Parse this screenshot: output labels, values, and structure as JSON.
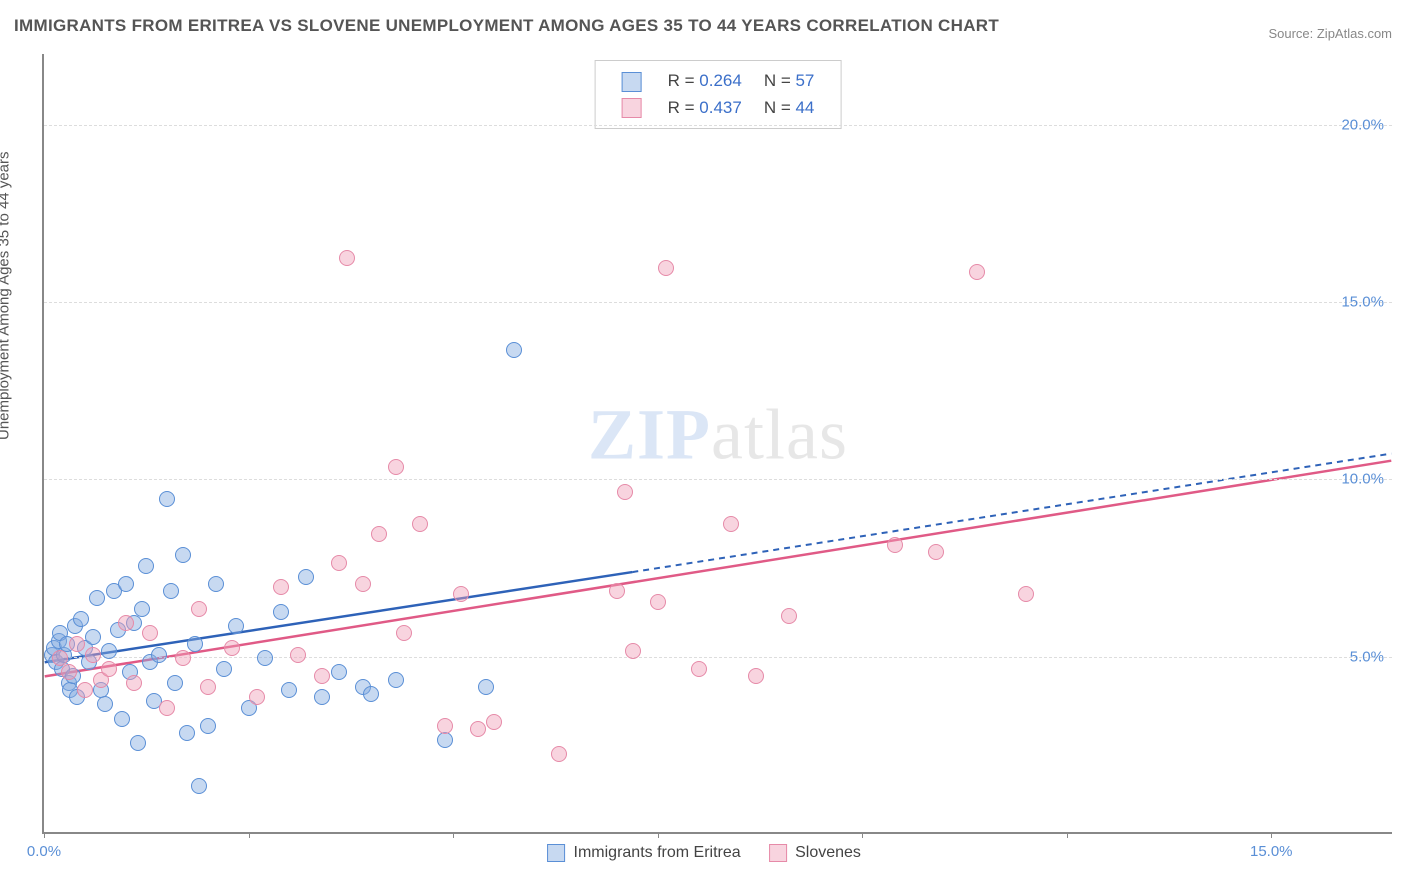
{
  "chart": {
    "type": "scatter",
    "title": "IMMIGRANTS FROM ERITREA VS SLOVENE UNEMPLOYMENT AMONG AGES 35 TO 44 YEARS CORRELATION CHART",
    "source": "Source: ZipAtlas.com",
    "ylabel": "Unemployment Among Ages 35 to 44 years",
    "watermark_zip": "ZIP",
    "watermark_atlas": "atlas",
    "background_color": "#ffffff",
    "grid_color": "#dddddd",
    "axis_color": "#888888",
    "tick_label_color": "#5a8fd6",
    "text_color": "#555555",
    "xlim": [
      0,
      16.5
    ],
    "ylim": [
      0,
      22
    ],
    "yticks": [
      5.0,
      10.0,
      15.0,
      20.0
    ],
    "ytick_labels": [
      "5.0%",
      "10.0%",
      "15.0%",
      "20.0%"
    ],
    "xticks": [
      0,
      2.5,
      5.0,
      7.5,
      10.0,
      12.5,
      15.0
    ],
    "xtick_labels_shown": {
      "0": "0.0%",
      "15": "15.0%"
    },
    "marker_radius": 8,
    "series": [
      {
        "id": "eritrea",
        "label": "Immigrants from Eritrea",
        "fill": "rgba(130,170,225,0.45)",
        "stroke": "#5a8fd6",
        "line_color": "#2e62b8",
        "r": 0.264,
        "n": 57,
        "trend": {
          "x1": 0,
          "y1": 4.8,
          "x2_solid": 7.2,
          "y2_solid": 7.35,
          "x2_dash": 16.5,
          "y2_dash": 10.7
        },
        "points": [
          [
            0.1,
            5.0
          ],
          [
            0.12,
            5.2
          ],
          [
            0.15,
            4.8
          ],
          [
            0.18,
            5.4
          ],
          [
            0.2,
            5.6
          ],
          [
            0.22,
            4.6
          ],
          [
            0.25,
            5.0
          ],
          [
            0.28,
            5.3
          ],
          [
            0.3,
            4.2
          ],
          [
            0.32,
            4.0
          ],
          [
            0.35,
            4.4
          ],
          [
            0.38,
            5.8
          ],
          [
            0.4,
            3.8
          ],
          [
            0.45,
            6.0
          ],
          [
            0.5,
            5.2
          ],
          [
            0.55,
            4.8
          ],
          [
            0.6,
            5.5
          ],
          [
            0.65,
            6.6
          ],
          [
            0.7,
            4.0
          ],
          [
            0.75,
            3.6
          ],
          [
            0.8,
            5.1
          ],
          [
            0.85,
            6.8
          ],
          [
            0.9,
            5.7
          ],
          [
            0.95,
            3.2
          ],
          [
            1.0,
            7.0
          ],
          [
            1.05,
            4.5
          ],
          [
            1.1,
            5.9
          ],
          [
            1.15,
            2.5
          ],
          [
            1.2,
            6.3
          ],
          [
            1.25,
            7.5
          ],
          [
            1.3,
            4.8
          ],
          [
            1.35,
            3.7
          ],
          [
            1.4,
            5.0
          ],
          [
            1.5,
            9.4
          ],
          [
            1.55,
            6.8
          ],
          [
            1.6,
            4.2
          ],
          [
            1.7,
            7.8
          ],
          [
            1.75,
            2.8
          ],
          [
            1.85,
            5.3
          ],
          [
            1.9,
            1.3
          ],
          [
            2.0,
            3.0
          ],
          [
            2.1,
            7.0
          ],
          [
            2.2,
            4.6
          ],
          [
            2.35,
            5.8
          ],
          [
            2.5,
            3.5
          ],
          [
            2.7,
            4.9
          ],
          [
            2.9,
            6.2
          ],
          [
            3.0,
            4.0
          ],
          [
            3.2,
            7.2
          ],
          [
            3.4,
            3.8
          ],
          [
            3.6,
            4.5
          ],
          [
            3.9,
            4.1
          ],
          [
            4.0,
            3.9
          ],
          [
            4.3,
            4.3
          ],
          [
            4.9,
            2.6
          ],
          [
            5.4,
            4.1
          ],
          [
            5.75,
            13.6
          ]
        ]
      },
      {
        "id": "slovenes",
        "label": "Slovenes",
        "fill": "rgba(240,160,185,0.45)",
        "stroke": "#e68aa8",
        "line_color": "#e05a86",
        "r": 0.437,
        "n": 44,
        "trend": {
          "x1": 0,
          "y1": 4.4,
          "x2_solid": 16.5,
          "y2_solid": 10.5
        },
        "points": [
          [
            0.2,
            4.9
          ],
          [
            0.3,
            4.5
          ],
          [
            0.4,
            5.3
          ],
          [
            0.5,
            4.0
          ],
          [
            0.6,
            5.0
          ],
          [
            0.7,
            4.3
          ],
          [
            0.8,
            4.6
          ],
          [
            1.0,
            5.9
          ],
          [
            1.1,
            4.2
          ],
          [
            1.3,
            5.6
          ],
          [
            1.5,
            3.5
          ],
          [
            1.7,
            4.9
          ],
          [
            1.9,
            6.3
          ],
          [
            2.0,
            4.1
          ],
          [
            2.3,
            5.2
          ],
          [
            2.6,
            3.8
          ],
          [
            2.9,
            6.9
          ],
          [
            3.1,
            5.0
          ],
          [
            3.4,
            4.4
          ],
          [
            3.6,
            7.6
          ],
          [
            3.7,
            16.2
          ],
          [
            3.9,
            7.0
          ],
          [
            4.1,
            8.4
          ],
          [
            4.3,
            10.3
          ],
          [
            4.4,
            5.6
          ],
          [
            4.6,
            8.7
          ],
          [
            4.9,
            3.0
          ],
          [
            5.1,
            6.7
          ],
          [
            5.3,
            2.9
          ],
          [
            5.5,
            3.1
          ],
          [
            6.3,
            2.2
          ],
          [
            7.0,
            6.8
          ],
          [
            7.1,
            9.6
          ],
          [
            7.2,
            5.1
          ],
          [
            7.5,
            6.5
          ],
          [
            7.6,
            15.9
          ],
          [
            8.0,
            4.6
          ],
          [
            8.4,
            8.7
          ],
          [
            8.7,
            4.4
          ],
          [
            9.1,
            6.1
          ],
          [
            10.4,
            8.1
          ],
          [
            10.9,
            7.9
          ],
          [
            11.4,
            15.8
          ],
          [
            12.0,
            6.7
          ]
        ]
      }
    ],
    "legend_top": {
      "r_label": "R =",
      "n_label": "N ="
    },
    "legend_bottom": {
      "items": [
        "Immigrants from Eritrea",
        "Slovenes"
      ]
    }
  }
}
